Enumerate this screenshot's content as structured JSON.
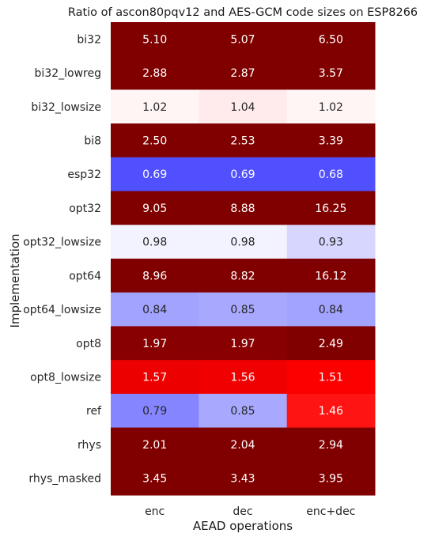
{
  "chart_data": {
    "type": "heatmap",
    "title": "Ratio of ascon80pqv12 and AES-GCM code sizes on ESP8266",
    "xlabel": "AEAD operations",
    "ylabel": "Implementation",
    "columns": [
      "enc",
      "dec",
      "enc+dec"
    ],
    "rows": [
      "bi32",
      "bi32_lowreg",
      "bi32_lowsize",
      "bi8",
      "esp32",
      "opt32",
      "opt32_lowsize",
      "opt64",
      "opt64_lowsize",
      "opt8",
      "opt8_lowsize",
      "ref",
      "rhys",
      "rhys_masked"
    ],
    "values": [
      [
        5.1,
        5.07,
        6.5
      ],
      [
        2.88,
        2.87,
        3.57
      ],
      [
        1.02,
        1.04,
        1.02
      ],
      [
        2.5,
        2.53,
        3.39
      ],
      [
        0.69,
        0.69,
        0.68
      ],
      [
        9.05,
        8.88,
        16.25
      ],
      [
        0.98,
        0.98,
        0.93
      ],
      [
        8.96,
        8.82,
        16.12
      ],
      [
        0.84,
        0.85,
        0.84
      ],
      [
        1.97,
        1.97,
        2.49
      ],
      [
        1.57,
        1.56,
        1.51
      ],
      [
        0.79,
        0.85,
        1.46
      ],
      [
        2.01,
        2.04,
        2.94
      ],
      [
        3.45,
        3.43,
        3.95
      ]
    ],
    "labels": [
      [
        "5.10",
        "5.07",
        "6.50"
      ],
      [
        "2.88",
        "2.87",
        "3.57"
      ],
      [
        "1.02",
        "1.04",
        "1.02"
      ],
      [
        "2.50",
        "2.53",
        "3.39"
      ],
      [
        "0.69",
        "0.69",
        "0.68"
      ],
      [
        "9.05",
        "8.88",
        "16.25"
      ],
      [
        "0.98",
        "0.98",
        "0.93"
      ],
      [
        "8.96",
        "8.82",
        "16.12"
      ],
      [
        "0.84",
        "0.85",
        "0.84"
      ],
      [
        "1.97",
        "1.97",
        "2.49"
      ],
      [
        "1.57",
        "1.56",
        "1.51"
      ],
      [
        "0.79",
        "0.85",
        "1.46"
      ],
      [
        "2.01",
        "2.04",
        "2.94"
      ],
      [
        "3.45",
        "3.43",
        "3.95"
      ]
    ],
    "colormap": "seismic",
    "color_center": 1.0,
    "colors": {
      "low": "#5050ff",
      "center": "#ffffff",
      "high_mid": "#ff0000",
      "high": "#800000"
    }
  }
}
